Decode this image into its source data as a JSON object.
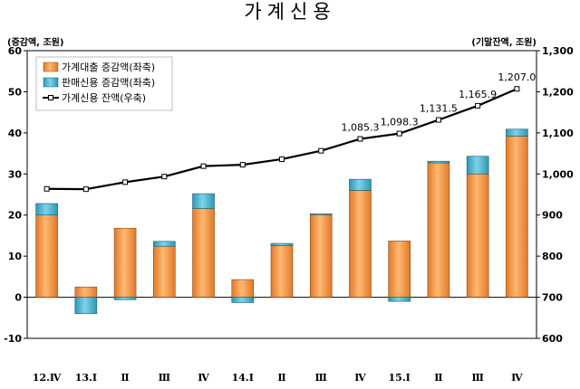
{
  "chart_data": {
    "type": "bar",
    "title": "가계신용",
    "left_axis_unit": "(증감액, 조원)",
    "right_axis_unit": "(기말잔액, 조원)",
    "categories": [
      "12.Ⅳ",
      "13.Ⅰ",
      "Ⅱ",
      "Ⅲ",
      "Ⅳ",
      "14.Ⅰ",
      "Ⅱ",
      "Ⅲ",
      "Ⅳ",
      "15.Ⅰ",
      "Ⅱ",
      "Ⅲ",
      "Ⅳ"
    ],
    "y_left": {
      "min": -10,
      "max": 60,
      "step": 10,
      "ticks": [
        "-10",
        "0",
        "10",
        "20",
        "30",
        "40",
        "50",
        "60"
      ]
    },
    "y_right": {
      "min": 600,
      "max": 1300,
      "step": 100,
      "ticks": [
        "600",
        "700",
        "800",
        "900",
        "1,000",
        "1,100",
        "1,200",
        "1,300"
      ]
    },
    "grid": false,
    "legend_position": "top-left",
    "series": [
      {
        "name": "가계대출 증감액(좌축)",
        "type": "bar",
        "axis": "left",
        "color": "#F5A04F",
        "values": [
          20.0,
          2.5,
          16.8,
          12.4,
          21.6,
          4.3,
          12.6,
          20.1,
          26.0,
          13.7,
          32.7,
          30.0,
          39.2
        ]
      },
      {
        "name": "판매신용 증감액(좌축)",
        "type": "bar",
        "axis": "left",
        "color": "#4DB6D0",
        "values": [
          2.8,
          -4.0,
          -0.6,
          1.2,
          3.6,
          -1.3,
          0.5,
          0.2,
          2.7,
          -1.0,
          0.4,
          4.3,
          1.7
        ]
      },
      {
        "name": "가계신용 잔액(우축)",
        "type": "line",
        "axis": "right",
        "color": "#000000",
        "values": [
          963.8,
          962.9,
          980.0,
          993.6,
          1019.0,
          1022.4,
          1035.9,
          1056.4,
          1085.3,
          1098.3,
          1131.5,
          1165.9,
          1207.0
        ],
        "labels": [
          "",
          "",
          "",
          "",
          "",
          "",
          "",
          "",
          "1,085.3",
          "1,098.3",
          "1,131.5",
          "1,165.9",
          "1,207.0"
        ]
      }
    ]
  }
}
